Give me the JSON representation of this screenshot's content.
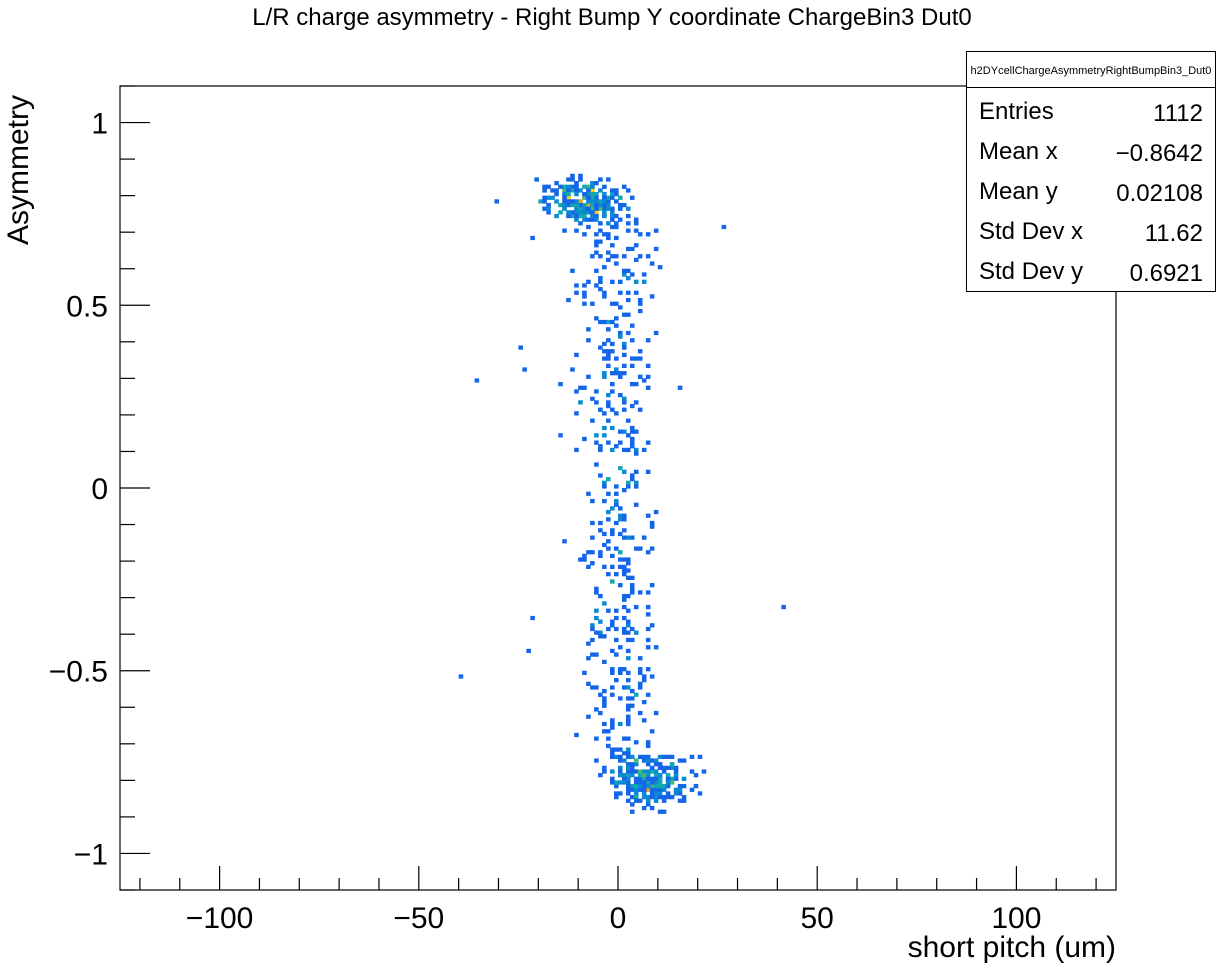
{
  "chart_data": {
    "type": "heatmap",
    "title": "L/R charge asymmetry - Right Bump Y coordinate ChargeBin3 Dut0",
    "xlabel": "short pitch (um)",
    "ylabel": "Asymmetry",
    "xlim": [
      -125,
      125
    ],
    "ylim": [
      -1.1,
      1.1
    ],
    "xticks": [
      -100,
      -50,
      0,
      50,
      100
    ],
    "xtick_labels": [
      "−100",
      "−50",
      "0",
      "50",
      "100"
    ],
    "yticks": [
      -1,
      -0.5,
      0,
      0.5,
      1
    ],
    "ytick_labels": [
      "−1",
      "−0.5",
      "0",
      "0.5",
      "1"
    ],
    "grid": false,
    "colors": {
      "low": "#1565e8",
      "mid_low": "#0a8ad0",
      "mid": "#13a8b0",
      "mid_high": "#3fb87a",
      "high": "#f6d20c",
      "max": "#f2a11a"
    },
    "stats_box": {
      "name": "h2DYcellChargeAsymmetryRightBumpBin3_Dut0",
      "rows": [
        {
          "label": "Entries",
          "value": "1112"
        },
        {
          "label": "Mean x",
          "value": "−0.8642"
        },
        {
          "label": "Mean y",
          "value": "0.02108"
        },
        {
          "label": "Std Dev x",
          "value": "11.62"
        },
        {
          "label": "Std Dev y",
          "value": "0.6921"
        }
      ]
    }
  }
}
